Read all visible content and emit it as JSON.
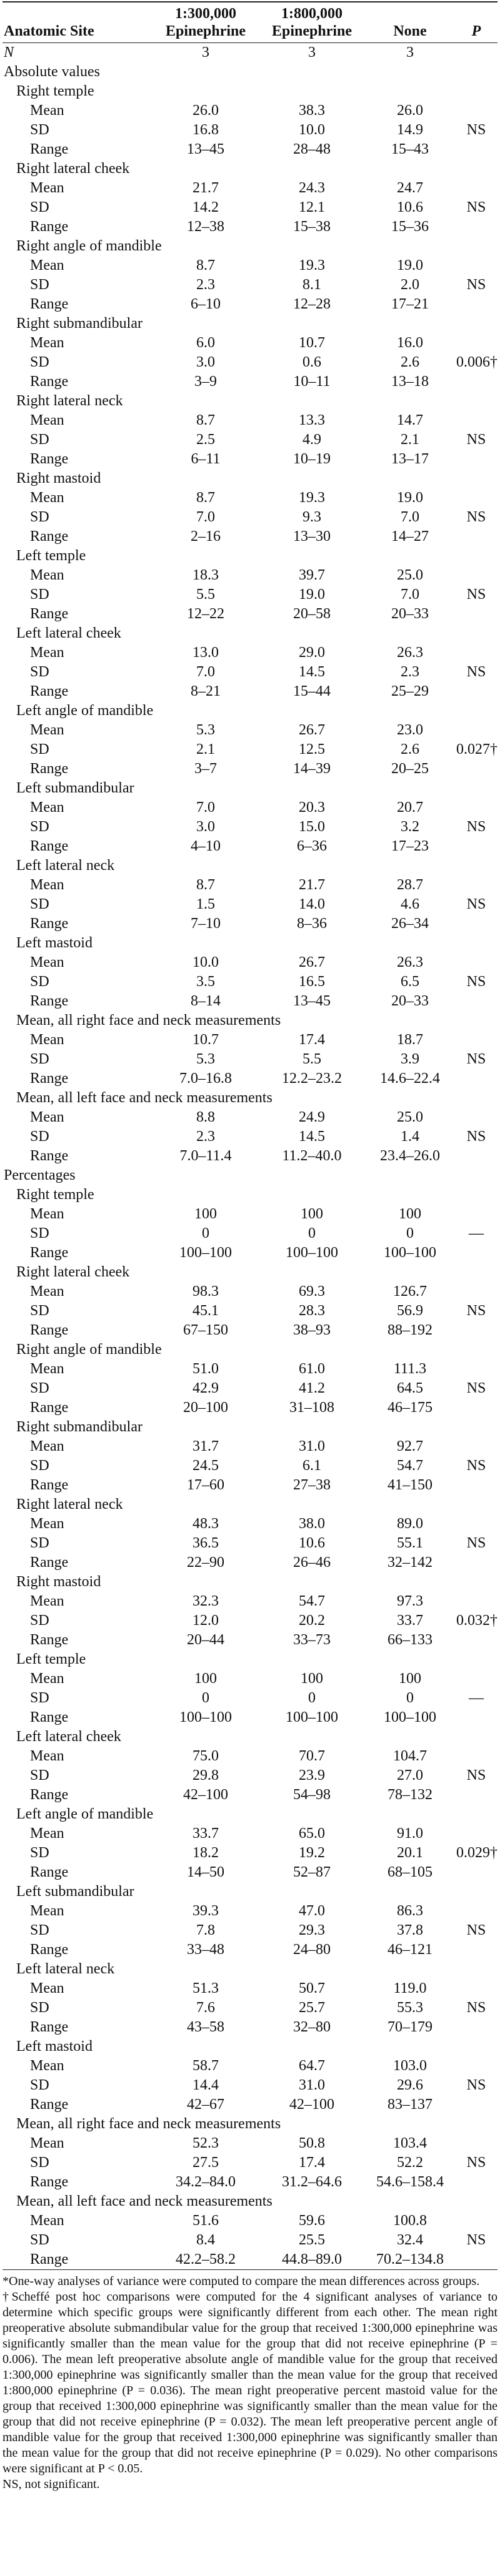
{
  "table": {
    "header": [
      "Anatomic Site",
      "1:300,000 Epinephrine",
      "1:800,000 Epinephrine",
      "None",
      "P"
    ],
    "n_row": [
      "N",
      "3",
      "3",
      "3"
    ],
    "sections": [
      {
        "title": "Absolute values",
        "groups": [
          {
            "site": "Right temple",
            "rows": [
              [
                "Mean",
                "26.0",
                "38.3",
                "26.0"
              ],
              [
                "SD",
                "16.8",
                "10.0",
                "14.9",
                "NS"
              ],
              [
                "Range",
                "13–45",
                "28–48",
                "15–43"
              ]
            ]
          },
          {
            "site": "Right lateral cheek",
            "rows": [
              [
                "Mean",
                "21.7",
                "24.3",
                "24.7"
              ],
              [
                "SD",
                "14.2",
                "12.1",
                "10.6",
                "NS"
              ],
              [
                "Range",
                "12–38",
                "15–38",
                "15–36"
              ]
            ]
          },
          {
            "site": "Right angle of mandible",
            "rows": [
              [
                "Mean",
                "8.7",
                "19.3",
                "19.0"
              ],
              [
                "SD",
                "2.3",
                "8.1",
                "2.0",
                "NS"
              ],
              [
                "Range",
                "6–10",
                "12–28",
                "17–21"
              ]
            ]
          },
          {
            "site": "Right submandibular",
            "rows": [
              [
                "Mean",
                "6.0",
                "10.7",
                "16.0"
              ],
              [
                "SD",
                "3.0",
                "0.6",
                "2.6",
                "0.006†"
              ],
              [
                "Range",
                "3–9",
                "10–11",
                "13–18"
              ]
            ]
          },
          {
            "site": "Right lateral neck",
            "rows": [
              [
                "Mean",
                "8.7",
                "13.3",
                "14.7"
              ],
              [
                "SD",
                "2.5",
                "4.9",
                "2.1",
                "NS"
              ],
              [
                "Range",
                "6–11",
                "10–19",
                "13–17"
              ]
            ]
          },
          {
            "site": "Right mastoid",
            "rows": [
              [
                "Mean",
                "8.7",
                "19.3",
                "19.0"
              ],
              [
                "SD",
                "7.0",
                "9.3",
                "7.0",
                "NS"
              ],
              [
                "Range",
                "2–16",
                "13–30",
                "14–27"
              ]
            ]
          },
          {
            "site": "Left temple",
            "rows": [
              [
                "Mean",
                "18.3",
                "39.7",
                "25.0"
              ],
              [
                "SD",
                "5.5",
                "19.0",
                "7.0",
                "NS"
              ],
              [
                "Range",
                "12–22",
                "20–58",
                "20–33"
              ]
            ]
          },
          {
            "site": "Left lateral cheek",
            "rows": [
              [
                "Mean",
                "13.0",
                "29.0",
                "26.3"
              ],
              [
                "SD",
                "7.0",
                "14.5",
                "2.3",
                "NS"
              ],
              [
                "Range",
                "8–21",
                "15–44",
                "25–29"
              ]
            ]
          },
          {
            "site": "Left angle of mandible",
            "rows": [
              [
                "Mean",
                "5.3",
                "26.7",
                "23.0"
              ],
              [
                "SD",
                "2.1",
                "12.5",
                "2.6",
                "0.027†"
              ],
              [
                "Range",
                "3–7",
                "14–39",
                "20–25"
              ]
            ]
          },
          {
            "site": "Left submandibular",
            "rows": [
              [
                "Mean",
                "7.0",
                "20.3",
                "20.7"
              ],
              [
                "SD",
                "3.0",
                "15.0",
                "3.2",
                "NS"
              ],
              [
                "Range",
                "4–10",
                "6–36",
                "17–23"
              ]
            ]
          },
          {
            "site": "Left lateral neck",
            "rows": [
              [
                "Mean",
                "8.7",
                "21.7",
                "28.7"
              ],
              [
                "SD",
                "1.5",
                "14.0",
                "4.6",
                "NS"
              ],
              [
                "Range",
                "7–10",
                "8–36",
                "26–34"
              ]
            ]
          },
          {
            "site": "Left mastoid",
            "rows": [
              [
                "Mean",
                "10.0",
                "26.7",
                "26.3"
              ],
              [
                "SD",
                "3.5",
                "16.5",
                "6.5",
                "NS"
              ],
              [
                "Range",
                "8–14",
                "13–45",
                "20–33"
              ]
            ]
          },
          {
            "site": "Mean, all right face and neck measurements",
            "rows": [
              [
                "Mean",
                "10.7",
                "17.4",
                "18.7"
              ],
              [
                "SD",
                "5.3",
                "5.5",
                "3.9",
                "NS"
              ],
              [
                "Range",
                "7.0–16.8",
                "12.2–23.2",
                "14.6–22.4"
              ]
            ]
          },
          {
            "site": "Mean, all left face and neck measurements",
            "rows": [
              [
                "Mean",
                "8.8",
                "24.9",
                "25.0"
              ],
              [
                "SD",
                "2.3",
                "14.5",
                "1.4",
                "NS"
              ],
              [
                "Range",
                "7.0–11.4",
                "11.2–40.0",
                "23.4–26.0"
              ]
            ]
          }
        ]
      },
      {
        "title": "Percentages",
        "groups": [
          {
            "site": "Right temple",
            "rows": [
              [
                "Mean",
                "100",
                "100",
                "100"
              ],
              [
                "SD",
                "0",
                "0",
                "0",
                "—"
              ],
              [
                "Range",
                "100–100",
                "100–100",
                "100–100"
              ]
            ]
          },
          {
            "site": "Right lateral cheek",
            "rows": [
              [
                "Mean",
                "98.3",
                "69.3",
                "126.7"
              ],
              [
                "SD",
                "45.1",
                "28.3",
                "56.9",
                "NS"
              ],
              [
                "Range",
                "67–150",
                "38–93",
                "88–192"
              ]
            ]
          },
          {
            "site": "Right angle of mandible",
            "rows": [
              [
                "Mean",
                "51.0",
                "61.0",
                "111.3"
              ],
              [
                "SD",
                "42.9",
                "41.2",
                "64.5",
                "NS"
              ],
              [
                "Range",
                "20–100",
                "31–108",
                "46–175"
              ]
            ]
          },
          {
            "site": "Right submandibular",
            "rows": [
              [
                "Mean",
                "31.7",
                "31.0",
                "92.7"
              ],
              [
                "SD",
                "24.5",
                "6.1",
                "54.7",
                "NS"
              ],
              [
                "Range",
                "17–60",
                "27–38",
                "41–150"
              ]
            ]
          },
          {
            "site": "Right lateral neck",
            "rows": [
              [
                "Mean",
                "48.3",
                "38.0",
                "89.0"
              ],
              [
                "SD",
                "36.5",
                "10.6",
                "55.1",
                "NS"
              ],
              [
                "Range",
                "22–90",
                "26–46",
                "32–142"
              ]
            ]
          },
          {
            "site": "Right mastoid",
            "rows": [
              [
                "Mean",
                "32.3",
                "54.7",
                "97.3"
              ],
              [
                "SD",
                "12.0",
                "20.2",
                "33.7",
                "0.032†"
              ],
              [
                "Range",
                "20–44",
                "33–73",
                "66–133"
              ]
            ]
          },
          {
            "site": "Left temple",
            "rows": [
              [
                "Mean",
                "100",
                "100",
                "100"
              ],
              [
                "SD",
                "0",
                "0",
                "0",
                "—"
              ],
              [
                "Range",
                "100–100",
                "100–100",
                "100–100"
              ]
            ]
          },
          {
            "site": "Left lateral cheek",
            "rows": [
              [
                "Mean",
                "75.0",
                "70.7",
                "104.7"
              ],
              [
                "SD",
                "29.8",
                "23.9",
                "27.0",
                "NS"
              ],
              [
                "Range",
                "42–100",
                "54–98",
                "78–132"
              ]
            ]
          },
          {
            "site": "Left angle of mandible",
            "rows": [
              [
                "Mean",
                "33.7",
                "65.0",
                "91.0"
              ],
              [
                "SD",
                "18.2",
                "19.2",
                "20.1",
                "0.029†"
              ],
              [
                "Range",
                "14–50",
                "52–87",
                "68–105"
              ]
            ]
          },
          {
            "site": "Left submandibular",
            "rows": [
              [
                "Mean",
                "39.3",
                "47.0",
                "86.3"
              ],
              [
                "SD",
                "7.8",
                "29.3",
                "37.8",
                "NS"
              ],
              [
                "Range",
                "33–48",
                "24–80",
                "46–121"
              ]
            ]
          },
          {
            "site": "Left lateral neck",
            "rows": [
              [
                "Mean",
                "51.3",
                "50.7",
                "119.0"
              ],
              [
                "SD",
                "7.6",
                "25.7",
                "55.3",
                "NS"
              ],
              [
                "Range",
                "43–58",
                "32–80",
                "70–179"
              ]
            ]
          },
          {
            "site": "Left mastoid",
            "rows": [
              [
                "Mean",
                "58.7",
                "64.7",
                "103.0"
              ],
              [
                "SD",
                "14.4",
                "31.0",
                "29.6",
                "NS"
              ],
              [
                "Range",
                "42–67",
                "42–100",
                "83–137"
              ]
            ]
          },
          {
            "site": "Mean, all right face and neck measurements",
            "rows": [
              [
                "Mean",
                "52.3",
                "50.8",
                "103.4"
              ],
              [
                "SD",
                "27.5",
                "17.4",
                "52.2",
                "NS"
              ],
              [
                "Range",
                "34.2–84.0",
                "31.2–64.6",
                "54.6–158.4"
              ]
            ]
          },
          {
            "site": "Mean, all left face and neck measurements",
            "rows": [
              [
                "Mean",
                "51.6",
                "59.6",
                "100.8"
              ],
              [
                "SD",
                "8.4",
                "25.5",
                "32.4",
                "NS"
              ],
              [
                "Range",
                "42.2–58.2",
                "44.8–89.0",
                "70.2–134.8"
              ]
            ]
          }
        ]
      }
    ]
  },
  "footnotes": [
    "*One-way analyses of variance were computed to compare the mean differences across groups.",
    "†Scheffé post hoc comparisons were computed for the 4 significant analyses of variance to determine which specific groups were significantly different from each other. The mean right preoperative absolute submandibular value for the group that received 1:300,000 epinephrine was significantly smaller than the mean value for the group that did not receive epinephrine (P = 0.006). The mean left preoperative absolute angle of mandible value for the group that received 1:300,000 epinephrine was significantly smaller than the mean value for the group that received 1:800,000 epinephrine (P = 0.036). The mean right preoperative percent mastoid value for the group that received 1:300,000 epinephrine was significantly smaller than the mean value for the group that did not receive epinephrine (P = 0.032). The mean left preoperative percent angle of mandible value for the group that received 1:300,000 epinephrine was significantly smaller than the mean value for the group that did not receive epinephrine (P = 0.029). No other comparisons were significant at P < 0.05.",
    "NS, not significant."
  ]
}
